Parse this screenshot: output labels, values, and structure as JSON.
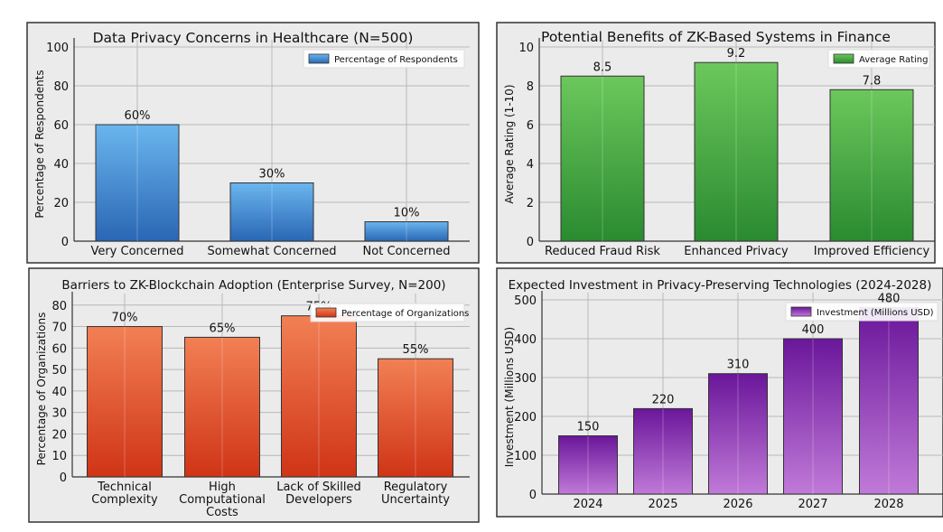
{
  "chart_data": [
    {
      "type": "bar",
      "title": "Data Privacy Concerns in Healthcare (N=500)",
      "xlabel": "",
      "ylabel": "Percentage of Respondents",
      "legend": "Percentage of Respondents",
      "legend_position": "top-right",
      "categories": [
        [
          "Very Concerned"
        ],
        [
          "Somewhat Concerned"
        ],
        [
          "Not Concerned"
        ]
      ],
      "values": [
        60,
        30,
        10
      ],
      "data_labels": [
        "60%",
        "30%",
        "10%"
      ],
      "ylim": [
        0,
        100
      ],
      "yticks": [
        0,
        20,
        40,
        60,
        80,
        100
      ],
      "grid": true,
      "colors": [
        "#6ab6ee",
        "#2a66b4"
      ]
    },
    {
      "type": "bar",
      "title": "Potential Benefits of ZK-Based Systems in Finance",
      "xlabel": "",
      "ylabel": "Average Rating (1-10)",
      "legend": "Average Rating",
      "legend_position": "top-right",
      "categories": [
        [
          "Reduced Fraud Risk"
        ],
        [
          "Enhanced Privacy"
        ],
        [
          "Improved Efficiency"
        ]
      ],
      "values": [
        8.5,
        9.2,
        7.8
      ],
      "data_labels": [
        "8.5",
        "9.2",
        "7.8"
      ],
      "ylim": [
        0,
        10
      ],
      "yticks": [
        0,
        2,
        4,
        6,
        8,
        10
      ],
      "grid": true,
      "colors": [
        "#6cc85c",
        "#2a8a30"
      ]
    },
    {
      "type": "bar",
      "title": "Barriers to ZK-Blockchain Adoption (Enterprise Survey, N=200)",
      "xlabel": "",
      "ylabel": "Percentage of Organizations",
      "legend": "Percentage of Organizations",
      "legend_position": "top-right",
      "categories": [
        [
          "Technical",
          "Complexity"
        ],
        [
          "High",
          "Computational",
          "Costs"
        ],
        [
          "Lack of Skilled",
          "Developers"
        ],
        [
          "Regulatory",
          "Uncertainty"
        ]
      ],
      "values": [
        70,
        65,
        75,
        55
      ],
      "data_labels": [
        "70%",
        "65%",
        "75%",
        "55%"
      ],
      "ylim": [
        0,
        82
      ],
      "yticks": [
        0,
        10,
        20,
        30,
        40,
        50,
        60,
        70,
        80
      ],
      "grid": true,
      "colors": [
        "#f28054",
        "#cf3416"
      ]
    },
    {
      "type": "bar",
      "title": "Expected Investment in Privacy-Preserving Technologies (2024-2028)",
      "xlabel": "",
      "ylabel": "Investment (Millions USD)",
      "legend": "Investment (Millions USD)",
      "legend_position": "top-right",
      "categories": [
        [
          "2024"
        ],
        [
          "2025"
        ],
        [
          "2026"
        ],
        [
          "2027"
        ],
        [
          "2028"
        ]
      ],
      "values": [
        150,
        220,
        310,
        400,
        480
      ],
      "data_labels": [
        "150",
        "220",
        "310",
        "400",
        "480"
      ],
      "ylim": [
        0,
        500
      ],
      "yticks": [
        0,
        100,
        200,
        300,
        400,
        500
      ],
      "grid": true,
      "colors": [
        "#6a169a",
        "#c07ad8"
      ]
    }
  ]
}
